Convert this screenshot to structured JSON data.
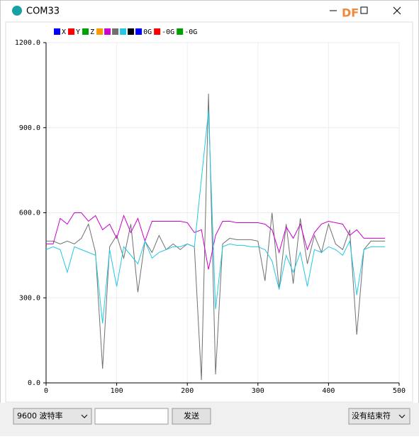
{
  "window": {
    "title": "COM33",
    "watermark": "DF"
  },
  "controls": {
    "baud": "9600 波特率",
    "send": "发送",
    "ending": "没有结束符"
  },
  "chart_data": {
    "type": "line",
    "legend": [
      {
        "name": "X",
        "color": "#0000ff"
      },
      {
        "name": "Y",
        "color": "#ff0000"
      },
      {
        "name": "Z",
        "color": "#00a000"
      },
      {
        "name": null,
        "color": "#ff9900"
      },
      {
        "name": null,
        "color": "#cc00cc"
      },
      {
        "name": null,
        "color": "#707070"
      },
      {
        "name": null,
        "color": "#22c8e5"
      },
      {
        "name": null,
        "color": "#000000"
      },
      {
        "name": "0G",
        "color": "#0000ff"
      },
      {
        "name": "-0G",
        "color": "#ff0000"
      },
      {
        "name": "-0G",
        "color": "#00a000"
      }
    ],
    "x": [
      0,
      10,
      20,
      30,
      40,
      50,
      60,
      70,
      80,
      90,
      100,
      110,
      120,
      130,
      140,
      150,
      160,
      170,
      180,
      190,
      200,
      210,
      220,
      230,
      240,
      250,
      260,
      270,
      280,
      290,
      300,
      310,
      320,
      330,
      340,
      350,
      360,
      370,
      380,
      390,
      400,
      410,
      420,
      430,
      440,
      450,
      460,
      470,
      480
    ],
    "series": [
      {
        "color": "#707070",
        "values": [
          500,
          500,
          490,
          500,
          490,
          510,
          560,
          460,
          50,
          480,
          520,
          440,
          560,
          320,
          500,
          460,
          520,
          470,
          490,
          470,
          490,
          480,
          10,
          1020,
          30,
          490,
          510,
          505,
          505,
          505,
          500,
          360,
          600,
          330,
          560,
          350,
          580,
          420,
          520,
          460,
          560,
          490,
          470,
          540,
          170,
          470,
          500,
          500,
          500
        ]
      },
      {
        "color": "#cc00cc",
        "values": [
          490,
          490,
          580,
          560,
          600,
          600,
          570,
          590,
          540,
          560,
          510,
          590,
          530,
          580,
          500,
          570,
          570,
          570,
          570,
          570,
          565,
          530,
          540,
          400,
          520,
          570,
          570,
          565,
          565,
          565,
          565,
          560,
          540,
          460,
          550,
          510,
          560,
          470,
          530,
          560,
          570,
          565,
          560,
          520,
          540,
          510,
          510,
          510,
          510
        ]
      },
      {
        "color": "#22c8e5",
        "values": [
          470,
          480,
          470,
          390,
          480,
          470,
          460,
          450,
          210,
          470,
          340,
          480,
          450,
          420,
          500,
          440,
          460,
          470,
          480,
          480,
          490,
          480,
          720,
          960,
          260,
          480,
          490,
          485,
          485,
          480,
          480,
          470,
          430,
          330,
          450,
          390,
          460,
          340,
          470,
          460,
          480,
          470,
          450,
          500,
          310,
          470,
          480,
          480,
          480
        ]
      }
    ],
    "xlim": [
      0,
      500
    ],
    "xticks": [
      0,
      100,
      200,
      300,
      400,
      500
    ],
    "ylim": [
      0,
      1200
    ],
    "yticks": [
      {
        "value": 0,
        "label": "0.0"
      },
      {
        "value": 300,
        "label": "300.0"
      },
      {
        "value": 600,
        "label": "600.0"
      },
      {
        "value": 900,
        "label": "900.0"
      },
      {
        "value": 1200,
        "label": "1200.0"
      }
    ],
    "grid": true
  }
}
